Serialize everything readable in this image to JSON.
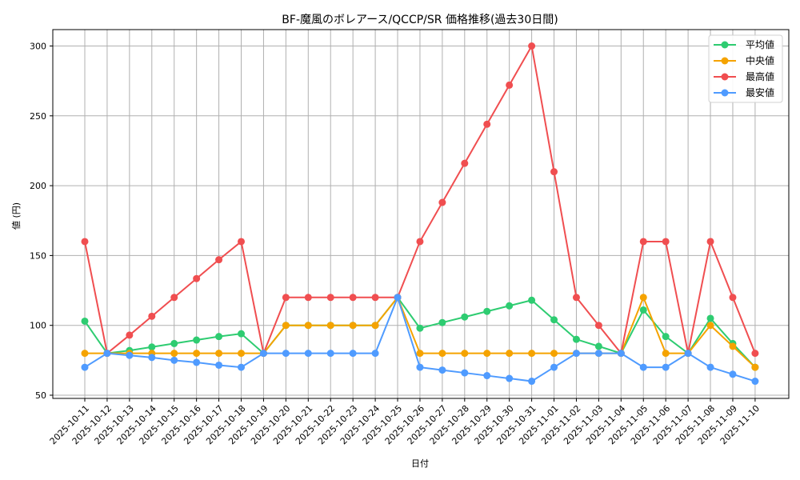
{
  "chart_data": {
    "type": "line",
    "title": "BF-魔風のボレアース/QCCP/SR 価格推移(過去30日間)",
    "xlabel": "日付",
    "ylabel": "値 (円)",
    "ylim": [
      48,
      313
    ],
    "yticks": [
      50,
      100,
      150,
      200,
      250,
      300
    ],
    "grid": true,
    "legend_position": "upper right",
    "x": [
      "2025-10-11",
      "2025-10-12",
      "2025-10-13",
      "2025-10-14",
      "2025-10-15",
      "2025-10-16",
      "2025-10-17",
      "2025-10-18",
      "2025-10-19",
      "2025-10-20",
      "2025-10-21",
      "2025-10-22",
      "2025-10-23",
      "2025-10-24",
      "2025-10-25",
      "2025-10-26",
      "2025-10-27",
      "2025-10-28",
      "2025-10-29",
      "2025-10-30",
      "2025-10-31",
      "2025-11-01",
      "2025-11-02",
      "2025-11-03",
      "2025-11-04",
      "2025-11-05",
      "2025-11-06",
      "2025-11-07",
      "2025-11-08",
      "2025-11-09",
      "2025-11-10"
    ],
    "series": [
      {
        "name": "平均値",
        "color": "#2ecc71",
        "values": [
          103,
          80,
          82,
          84.5,
          87,
          89.5,
          92,
          94,
          80,
          100,
          100,
          100,
          100,
          100,
          120,
          98,
          102,
          106,
          110,
          114,
          118,
          104,
          90,
          85,
          80,
          111,
          92,
          80,
          105,
          87,
          70
        ]
      },
      {
        "name": "中央値",
        "color": "#f5a300",
        "values": [
          80,
          80,
          80,
          80,
          80,
          80,
          80,
          80,
          80,
          100,
          100,
          100,
          100,
          100,
          120,
          80,
          80,
          80,
          80,
          80,
          80,
          80,
          80,
          80,
          80,
          120,
          80,
          80,
          100,
          85,
          70
        ]
      },
      {
        "name": "最高値",
        "color": "#f04e50",
        "values": [
          160,
          80,
          93,
          106.5,
          120,
          133.5,
          147,
          160,
          80,
          120,
          120,
          120,
          120,
          120,
          120,
          160,
          188,
          216,
          244,
          272,
          300,
          210,
          120,
          100,
          80,
          160,
          160,
          80,
          160,
          120,
          80
        ]
      },
      {
        "name": "最安値",
        "color": "#4f9bff",
        "values": [
          70,
          80,
          78.5,
          77,
          75,
          73.5,
          71.5,
          70,
          80,
          80,
          80,
          80,
          80,
          80,
          120,
          70,
          68,
          66,
          64,
          62,
          60,
          70,
          80,
          80,
          80,
          70,
          70,
          80,
          70,
          65,
          60
        ]
      }
    ]
  }
}
